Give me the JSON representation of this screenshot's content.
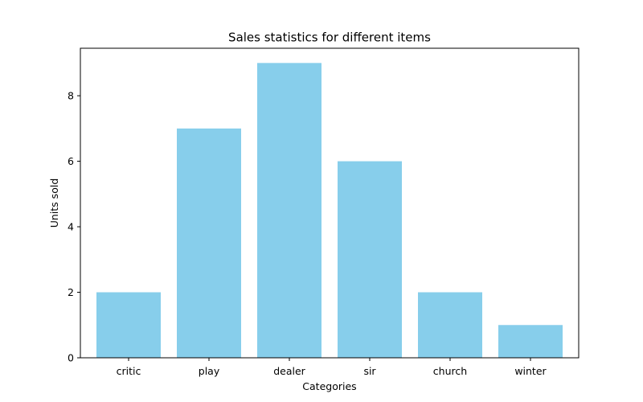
{
  "chart_data": {
    "type": "bar",
    "title": "Sales statistics for different items",
    "xlabel": "Categories",
    "ylabel": "Units sold",
    "categories": [
      "critic",
      "play",
      "dealer",
      "sir",
      "church",
      "winter"
    ],
    "values": [
      2,
      7,
      9,
      6,
      2,
      1
    ],
    "ylim": [
      0,
      9.45
    ],
    "yticks": [
      0,
      2,
      4,
      6,
      8
    ],
    "bar_color": "#87CEEB",
    "grid": false,
    "legend": "none"
  }
}
